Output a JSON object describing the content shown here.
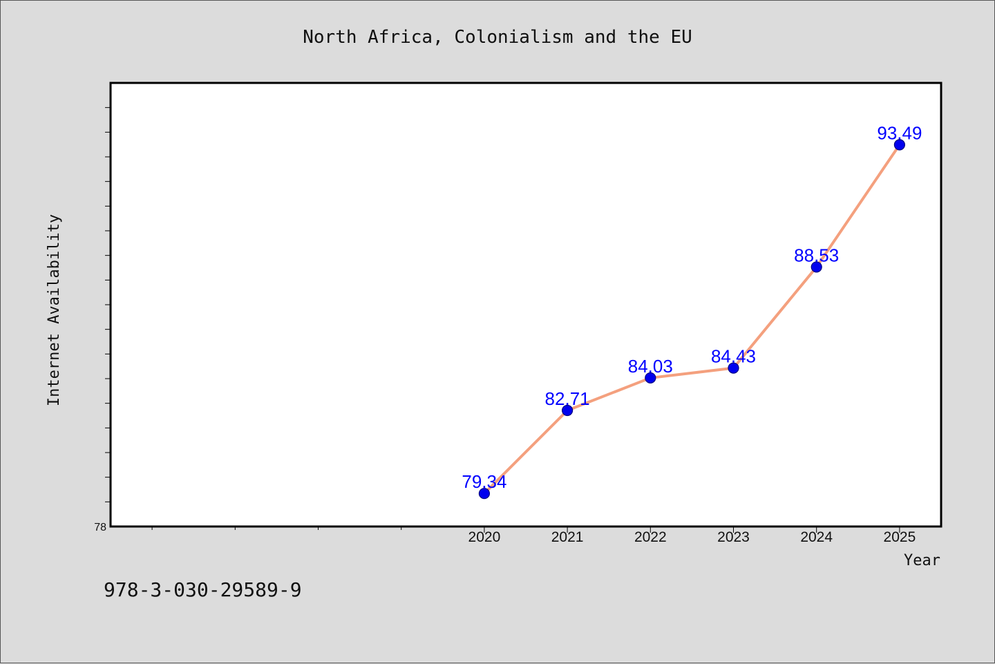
{
  "chart_data": {
    "type": "line",
    "title": "North Africa, Colonialism and the EU",
    "xlabel": "Year",
    "ylabel": "Internet Availability",
    "x": [
      2020,
      2021,
      2022,
      2023,
      2024,
      2025
    ],
    "x_tick_labels": [
      "2020",
      "2021",
      "2022",
      "2023",
      "2024",
      "2025"
    ],
    "xlim": [
      2015.5,
      2025.5
    ],
    "ylim": [
      78,
      96
    ],
    "y_tick_labels": [
      "78"
    ],
    "series": [
      {
        "values": [
          79.34,
          82.71,
          84.03,
          84.43,
          88.53,
          93.49
        ],
        "labels": [
          "79.34",
          "82.71",
          "84.03",
          "84.43",
          "88.53",
          "93.49"
        ]
      }
    ],
    "grid": false,
    "legend": "none"
  },
  "footer": {
    "isbn": "978-3-030-29589-9"
  },
  "colors": {
    "line": "#f4a07e",
    "marker": "#0000ee",
    "marker_edge": "#000080",
    "data_label": "#0000ff",
    "plot_bg": "#ffffff",
    "page_bg": "#dcdcdc"
  }
}
